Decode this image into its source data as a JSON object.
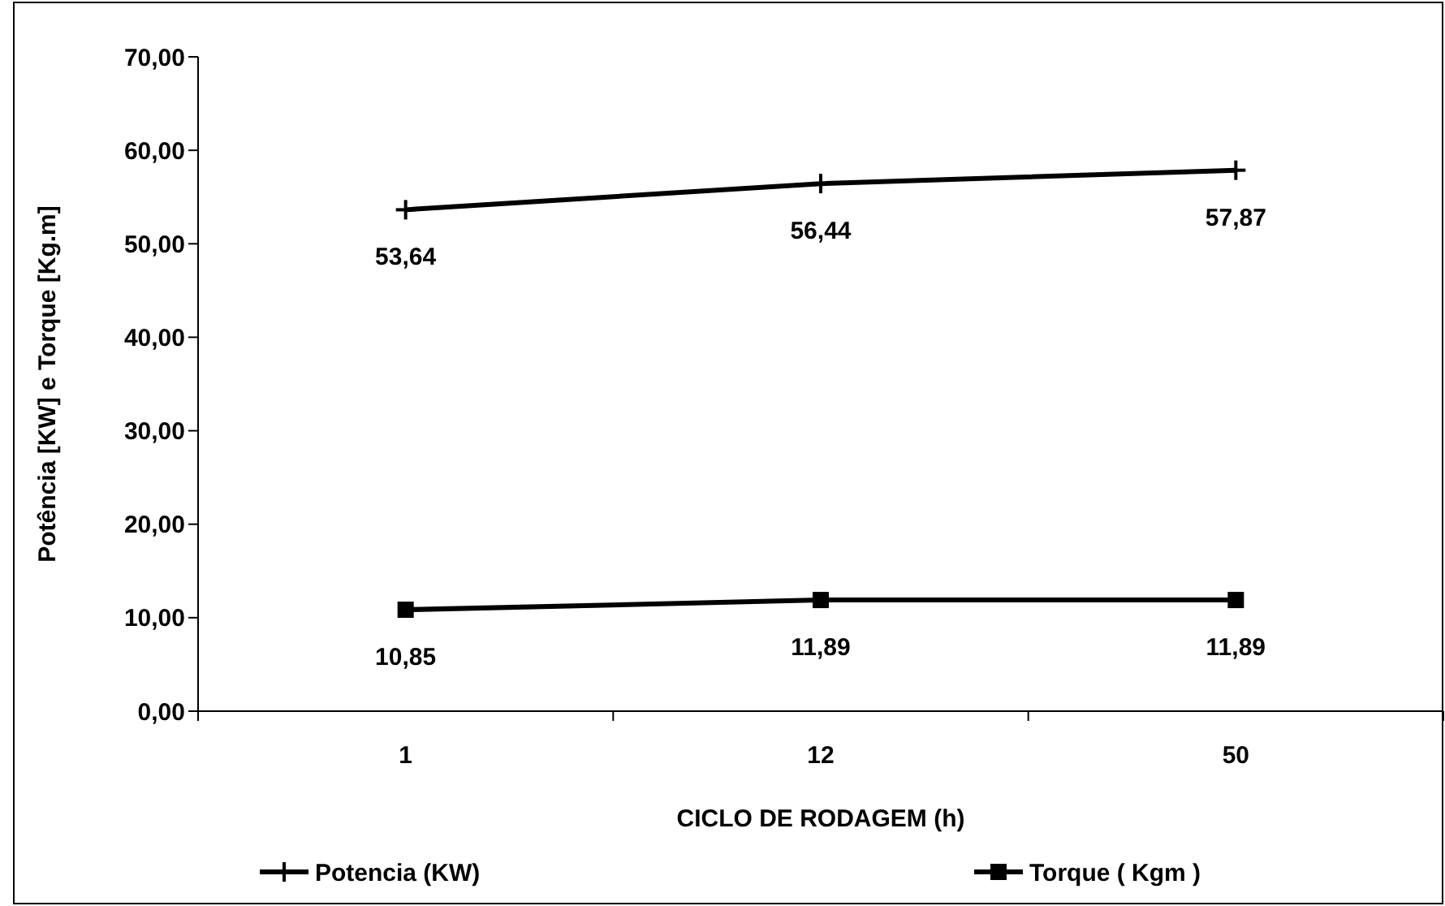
{
  "chart_data": {
    "type": "line",
    "xlabel": "CICLO DE RODAGEM (h)",
    "ylabel": "Potência [KW] e Torque [Kg.m]",
    "categories": [
      "1",
      "12",
      "50"
    ],
    "ylim": [
      0,
      70
    ],
    "yticks": [
      {
        "value": 0,
        "label": "0,00"
      },
      {
        "value": 10,
        "label": "10,00"
      },
      {
        "value": 20,
        "label": "20,00"
      },
      {
        "value": 30,
        "label": "30,00"
      },
      {
        "value": 40,
        "label": "40,00"
      },
      {
        "value": 50,
        "label": "50,00"
      },
      {
        "value": 60,
        "label": "60,00"
      },
      {
        "value": 70,
        "label": "70,00"
      }
    ],
    "grid": false,
    "legend": "bottom",
    "line_style": "solid",
    "series": [
      {
        "name": "Potencia (KW)",
        "color": "#000000",
        "marker": "cross",
        "values": [
          53.64,
          56.44,
          57.87
        ],
        "value_labels": [
          "53,64",
          "56,44",
          "57,87"
        ]
      },
      {
        "name": "Torque ( Kgm )",
        "color": "#000000",
        "marker": "square",
        "values": [
          10.85,
          11.89,
          11.89
        ],
        "value_labels": [
          "10,85",
          "11,89",
          "11,89"
        ]
      }
    ]
  }
}
